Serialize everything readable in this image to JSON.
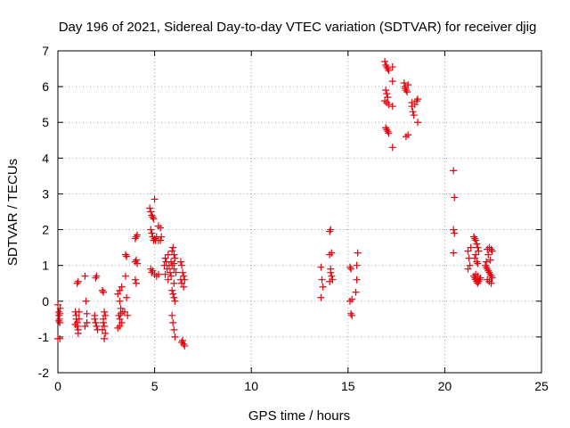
{
  "chart_data": {
    "type": "scatter",
    "title": "Day 196 of 2021, Sidereal Day-to-day VTEC variation (SDTVAR) for receiver djig",
    "xlabel": "GPS time / hours",
    "ylabel": "SDTVAR / TECUs",
    "xlim": [
      0,
      25
    ],
    "ylim": [
      -2,
      7
    ],
    "xticks": [
      0,
      5,
      10,
      15,
      20,
      25
    ],
    "yticks": [
      -2,
      -1,
      0,
      1,
      2,
      3,
      4,
      5,
      6,
      7
    ],
    "x_tick_labels": [
      "0",
      "5",
      "10",
      "15",
      "20",
      "25"
    ],
    "y_tick_labels": [
      "-2",
      "-1",
      "0",
      "1",
      "2",
      "3",
      "4",
      "5",
      "6",
      "7"
    ],
    "grid": true,
    "marker": "plus",
    "marker_color": "#e8000b",
    "series": [
      {
        "name": "SDTVAR",
        "points": [
          [
            0.0,
            -0.1
          ],
          [
            0.05,
            -0.3
          ],
          [
            0.08,
            -0.5
          ],
          [
            0.1,
            -0.6
          ],
          [
            0.12,
            -0.2
          ],
          [
            0.06,
            -0.4
          ],
          [
            0.1,
            -0.35
          ],
          [
            0.0,
            -1.05
          ],
          [
            0.1,
            -1.05
          ],
          [
            0.05,
            -0.55
          ],
          [
            0.9,
            -0.3
          ],
          [
            0.95,
            -0.5
          ],
          [
            1.0,
            -0.7
          ],
          [
            1.05,
            -0.8
          ],
          [
            1.0,
            -0.6
          ],
          [
            0.95,
            -0.4
          ],
          [
            1.1,
            -0.5
          ],
          [
            1.05,
            -0.9
          ],
          [
            1.0,
            0.5
          ],
          [
            1.05,
            0.55
          ],
          [
            1.1,
            -0.3
          ],
          [
            0.9,
            -0.65
          ],
          [
            1.4,
            0.7
          ],
          [
            1.45,
            0.0
          ],
          [
            1.5,
            -0.35
          ],
          [
            1.5,
            -0.6
          ],
          [
            1.4,
            -0.7
          ],
          [
            1.9,
            -0.4
          ],
          [
            1.95,
            -0.6
          ],
          [
            2.0,
            -0.7
          ],
          [
            2.05,
            -0.8
          ],
          [
            1.95,
            0.65
          ],
          [
            2.0,
            0.7
          ],
          [
            1.9,
            -0.5
          ],
          [
            2.3,
            0.3
          ],
          [
            2.35,
            0.25
          ],
          [
            2.4,
            -0.3
          ],
          [
            2.35,
            -0.5
          ],
          [
            2.4,
            -0.7
          ],
          [
            2.45,
            -0.9
          ],
          [
            2.4,
            -1.05
          ],
          [
            2.3,
            -0.8
          ],
          [
            2.45,
            -0.4
          ],
          [
            2.35,
            -0.6
          ],
          [
            3.1,
            0.2
          ],
          [
            3.2,
            0.3
          ],
          [
            3.25,
            -0.2
          ],
          [
            3.15,
            -0.4
          ],
          [
            3.2,
            -0.5
          ],
          [
            3.3,
            -0.6
          ],
          [
            3.2,
            -0.7
          ],
          [
            3.25,
            -0.35
          ],
          [
            3.1,
            -0.75
          ],
          [
            3.3,
            0.4
          ],
          [
            3.2,
            0.0
          ],
          [
            3.35,
            -0.3
          ],
          [
            3.5,
            1.3
          ],
          [
            3.55,
            1.25
          ],
          [
            3.5,
            0.7
          ],
          [
            3.55,
            0.1
          ],
          [
            3.45,
            -0.3
          ],
          [
            3.6,
            -0.4
          ],
          [
            4.0,
            1.75
          ],
          [
            4.05,
            1.8
          ],
          [
            4.1,
            1.85
          ],
          [
            4.0,
            1.1
          ],
          [
            4.05,
            1.15
          ],
          [
            4.1,
            1.05
          ],
          [
            4.0,
            0.6
          ],
          [
            4.05,
            0.5
          ],
          [
            4.75,
            2.6
          ],
          [
            4.8,
            2.5
          ],
          [
            4.85,
            2.4
          ],
          [
            4.9,
            2.35
          ],
          [
            4.95,
            2.3
          ],
          [
            5.0,
            2.85
          ],
          [
            4.8,
            2.0
          ],
          [
            4.85,
            1.9
          ],
          [
            4.9,
            1.8
          ],
          [
            4.95,
            1.7
          ],
          [
            5.0,
            1.75
          ],
          [
            5.05,
            1.7
          ],
          [
            5.1,
            1.8
          ],
          [
            5.2,
            1.7
          ],
          [
            5.3,
            1.7
          ],
          [
            5.35,
            1.8
          ],
          [
            5.2,
            2.1
          ],
          [
            5.3,
            2.05
          ],
          [
            4.8,
            0.9
          ],
          [
            4.85,
            0.8
          ],
          [
            4.9,
            0.85
          ],
          [
            5.0,
            0.75
          ],
          [
            5.1,
            0.7
          ],
          [
            5.2,
            0.75
          ],
          [
            5.5,
            1.0
          ],
          [
            5.55,
            1.2
          ],
          [
            5.6,
            1.1
          ],
          [
            5.65,
            0.9
          ],
          [
            5.7,
            1.3
          ],
          [
            5.75,
            1.0
          ],
          [
            5.8,
            0.8
          ],
          [
            5.85,
            1.1
          ],
          [
            5.9,
            1.4
          ],
          [
            5.95,
            1.5
          ],
          [
            6.0,
            1.3
          ],
          [
            6.05,
            1.2
          ],
          [
            5.9,
            1.0
          ],
          [
            6.0,
            0.9
          ],
          [
            5.55,
            0.75
          ],
          [
            5.7,
            0.6
          ],
          [
            5.85,
            0.7
          ],
          [
            6.0,
            0.5
          ],
          [
            5.9,
            0.3
          ],
          [
            5.95,
            0.2
          ],
          [
            6.0,
            0.1
          ],
          [
            6.05,
            0.0
          ],
          [
            5.9,
            -0.4
          ],
          [
            5.95,
            -0.6
          ],
          [
            6.0,
            -0.8
          ],
          [
            6.05,
            -1.0
          ],
          [
            6.1,
            0.8
          ],
          [
            6.0,
            1.05
          ],
          [
            6.35,
            1.1
          ],
          [
            6.4,
            1.0
          ],
          [
            6.45,
            0.8
          ],
          [
            6.5,
            0.7
          ],
          [
            6.55,
            0.6
          ],
          [
            6.4,
            0.5
          ],
          [
            6.5,
            0.4
          ],
          [
            6.35,
            0.6
          ],
          [
            6.45,
            -1.1
          ],
          [
            6.5,
            -1.2
          ],
          [
            6.4,
            -1.15
          ],
          [
            6.55,
            -1.25
          ],
          [
            13.6,
            0.95
          ],
          [
            13.65,
            0.6
          ],
          [
            13.7,
            0.4
          ],
          [
            13.6,
            0.1
          ],
          [
            14.05,
            1.95
          ],
          [
            14.1,
            2.0
          ],
          [
            14.15,
            1.35
          ],
          [
            14.05,
            1.3
          ],
          [
            14.1,
            0.8
          ],
          [
            14.15,
            0.7
          ],
          [
            14.2,
            0.6
          ],
          [
            14.05,
            0.55
          ],
          [
            14.1,
            0.9
          ],
          [
            15.1,
            0.95
          ],
          [
            15.15,
            0.9
          ],
          [
            15.2,
            0.05
          ],
          [
            15.1,
            0.0
          ],
          [
            15.15,
            -0.35
          ],
          [
            15.2,
            -0.4
          ],
          [
            15.45,
            1.0
          ],
          [
            15.5,
            1.35
          ],
          [
            15.45,
            0.6
          ],
          [
            15.4,
            0.25
          ],
          [
            16.9,
            6.7
          ],
          [
            16.95,
            6.6
          ],
          [
            17.0,
            6.55
          ],
          [
            17.05,
            6.5
          ],
          [
            17.1,
            6.45
          ],
          [
            16.95,
            5.9
          ],
          [
            17.0,
            5.8
          ],
          [
            17.05,
            5.7
          ],
          [
            16.9,
            5.6
          ],
          [
            17.1,
            5.5
          ],
          [
            17.0,
            5.55
          ],
          [
            16.95,
            4.85
          ],
          [
            17.0,
            4.8
          ],
          [
            17.05,
            4.75
          ],
          [
            17.1,
            4.7
          ],
          [
            17.3,
            6.55
          ],
          [
            17.3,
            6.15
          ],
          [
            17.3,
            5.45
          ],
          [
            17.3,
            4.3
          ],
          [
            17.9,
            6.1
          ],
          [
            17.95,
            6.0
          ],
          [
            18.0,
            5.9
          ],
          [
            18.05,
            5.85
          ],
          [
            18.1,
            6.05
          ],
          [
            17.95,
            5.95
          ],
          [
            18.0,
            4.6
          ],
          [
            18.1,
            4.65
          ],
          [
            18.3,
            5.45
          ],
          [
            18.35,
            5.3
          ],
          [
            18.4,
            5.2
          ],
          [
            18.45,
            5.5
          ],
          [
            18.3,
            5.55
          ],
          [
            18.6,
            5.65
          ],
          [
            18.55,
            5.6
          ],
          [
            18.6,
            5.0
          ],
          [
            20.45,
            3.65
          ],
          [
            20.5,
            2.9
          ],
          [
            20.45,
            2.0
          ],
          [
            20.5,
            1.9
          ],
          [
            20.45,
            1.35
          ],
          [
            21.2,
            1.4
          ],
          [
            21.25,
            1.2
          ],
          [
            21.3,
            1.0
          ],
          [
            21.2,
            0.9
          ],
          [
            21.35,
            1.5
          ],
          [
            21.5,
            1.8
          ],
          [
            21.55,
            1.75
          ],
          [
            21.6,
            1.7
          ],
          [
            21.65,
            1.6
          ],
          [
            21.7,
            1.5
          ],
          [
            21.75,
            1.4
          ],
          [
            21.6,
            1.3
          ],
          [
            21.65,
            1.1
          ],
          [
            21.7,
            1.05
          ],
          [
            21.55,
            1.2
          ],
          [
            21.5,
            0.7
          ],
          [
            21.55,
            0.65
          ],
          [
            21.6,
            0.6
          ],
          [
            21.65,
            0.55
          ],
          [
            21.7,
            0.5
          ],
          [
            21.75,
            0.55
          ],
          [
            21.8,
            0.6
          ],
          [
            21.85,
            0.65
          ],
          [
            21.6,
            0.75
          ],
          [
            21.7,
            0.7
          ],
          [
            22.1,
            1.0
          ],
          [
            22.15,
            0.95
          ],
          [
            22.2,
            0.9
          ],
          [
            22.25,
            0.85
          ],
          [
            22.3,
            0.8
          ],
          [
            22.35,
            0.75
          ],
          [
            22.4,
            0.7
          ],
          [
            22.45,
            0.65
          ],
          [
            22.2,
            1.45
          ],
          [
            22.3,
            1.5
          ],
          [
            22.4,
            1.45
          ],
          [
            22.45,
            1.4
          ],
          [
            22.2,
            0.6
          ],
          [
            22.3,
            0.55
          ],
          [
            22.4,
            0.5
          ],
          [
            22.15,
            1.1
          ],
          [
            22.35,
            1.15
          ],
          [
            22.25,
            1.3
          ]
        ]
      }
    ]
  }
}
